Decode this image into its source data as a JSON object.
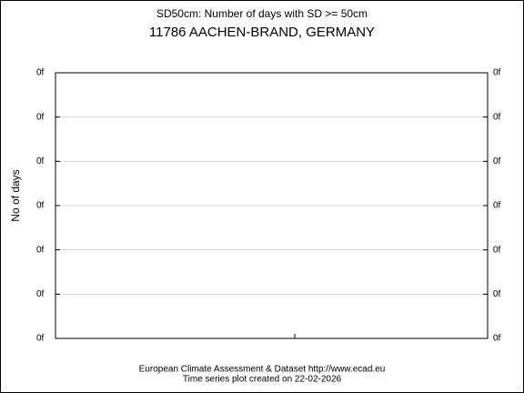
{
  "chart_data": {
    "type": "line",
    "title": "SD50cm: Number of days with SD >= 50cm",
    "subtitle": "11786 AACHEN-BRAND, GERMANY",
    "y_label": "No of days",
    "footer": [
      "European Climate Assessment & Dataset  http://www.ecad.eu",
      "Time series plot created on 22-02-2026"
    ],
    "series": [],
    "ylim": [
      0,
      6
    ],
    "yticks": [
      {
        "value": 0,
        "label": "0f"
      },
      {
        "value": 1,
        "label": "0f"
      },
      {
        "value": 2,
        "label": "0f"
      },
      {
        "value": 3,
        "label": "0f"
      },
      {
        "value": 4,
        "label": "0f"
      },
      {
        "value": 5,
        "label": "0f"
      },
      {
        "value": 6,
        "label": "0f"
      }
    ],
    "grid": true
  }
}
